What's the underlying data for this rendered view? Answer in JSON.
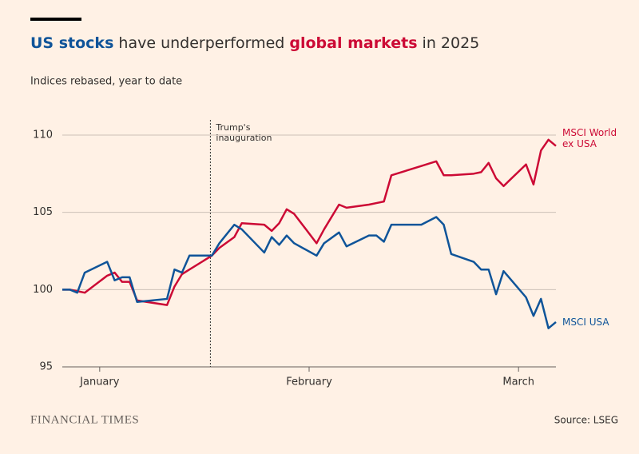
{
  "chart_data": {
    "type": "line",
    "title_parts": [
      {
        "text": "US stocks",
        "color": "#0f5499",
        "bold": true
      },
      {
        "text": " have underperformed ",
        "color": "#33302e",
        "bold": false
      },
      {
        "text": "global markets",
        "color": "#cc0a35",
        "bold": true
      },
      {
        "text": " in 2025",
        "color": "#33302e",
        "bold": false
      }
    ],
    "subtitle": "Indices rebased, year to date",
    "x": [
      1,
      2,
      3,
      4,
      7,
      8,
      9,
      10,
      11,
      15,
      16,
      17,
      18,
      21,
      22,
      24,
      25,
      28,
      29,
      30,
      31,
      32,
      35,
      36,
      38,
      39,
      42,
      43,
      44,
      45,
      49,
      51,
      52,
      53,
      56,
      57,
      58,
      59,
      60,
      63,
      64,
      65,
      66,
      67
    ],
    "xlim": [
      1,
      67
    ],
    "xticks": [
      {
        "value": 6,
        "label": "January"
      },
      {
        "value": 34,
        "label": "February"
      },
      {
        "value": 62,
        "label": "March"
      }
    ],
    "ylim": [
      95,
      110
    ],
    "yticks": [
      95,
      100,
      105,
      110
    ],
    "grid": true,
    "series": [
      {
        "name": "MSCI World ex USA",
        "color": "#cc0a35",
        "values": [
          100.0,
          100.0,
          99.9,
          99.8,
          100.9,
          101.1,
          100.5,
          100.5,
          99.3,
          99.0,
          100.2,
          101.0,
          101.3,
          102.2,
          102.7,
          103.4,
          104.3,
          104.2,
          103.8,
          104.3,
          105.2,
          104.9,
          103.0,
          103.9,
          105.5,
          105.3,
          105.5,
          105.6,
          105.7,
          107.4,
          108.0,
          108.3,
          107.4,
          107.4,
          107.5,
          107.6,
          108.2,
          107.2,
          106.7,
          108.1,
          106.8,
          109.0,
          109.7,
          109.3
        ]
      },
      {
        "name": "MSCI USA",
        "color": "#0f5499",
        "values": [
          100.0,
          100.0,
          99.8,
          101.1,
          101.8,
          100.6,
          100.8,
          100.8,
          99.2,
          99.4,
          101.3,
          101.1,
          102.2,
          102.2,
          103.0,
          104.2,
          103.9,
          102.4,
          103.4,
          102.9,
          103.5,
          103.0,
          102.2,
          103.0,
          103.7,
          102.8,
          103.5,
          103.5,
          103.1,
          104.2,
          104.2,
          104.7,
          104.2,
          102.3,
          101.8,
          101.3,
          101.3,
          99.7,
          101.2,
          99.5,
          98.3,
          99.4,
          97.5,
          97.9
        ]
      }
    ],
    "annotation": {
      "x": 20.8,
      "text": "Trump's inauguration"
    },
    "source": "Source: LSEG",
    "brand": "FINANCIAL TIMES"
  }
}
